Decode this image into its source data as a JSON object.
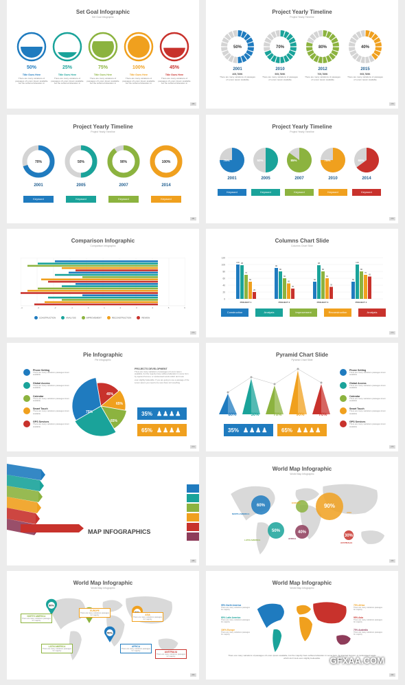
{
  "s1": {
    "title": "Set Goal Infographic",
    "sub": "Set Goal Infographic",
    "items": [
      {
        "pct": "50%",
        "fill": 0.5,
        "color": "#1f7bbf",
        "head": "Title Goes Here",
        "desc": "There are many variations of passages of Lorem Ipsum available but the sufferred alteration in"
      },
      {
        "pct": "25%",
        "fill": 0.25,
        "color": "#1aa39a",
        "head": "Title Goes Here",
        "desc": "There are many variations of passages of Lorem Ipsum available but the sufferred alteration in"
      },
      {
        "pct": "75%",
        "fill": 0.75,
        "color": "#8cb33f",
        "head": "Title Goes Here",
        "desc": "There are many variations of passages of Lorem Ipsum available but the sufferred alteration in"
      },
      {
        "pct": "100%",
        "fill": 1.0,
        "color": "#f0a01e",
        "head": "Title Goes Here",
        "desc": "There are many variations of passages of Lorem Ipsum available but the sufferred alteration in"
      },
      {
        "pct": "45%",
        "fill": 0.45,
        "color": "#c8322c",
        "head": "Title Goes Here",
        "desc": "There are many variations of passages of Lorem Ipsum available but the sufferred alteration in"
      }
    ]
  },
  "s2": {
    "title": "Project Yearly Timeline",
    "sub": "Project Yearly Timeline",
    "items": [
      {
        "pct": "50%",
        "val": 0.5,
        "color": "#1f7bbf",
        "year": "2001",
        "num": "405,789K",
        "desc": "There are many variations of passages of Lorem Ipsum available"
      },
      {
        "pct": "70%",
        "val": 0.7,
        "color": "#1aa39a",
        "year": "2010",
        "num": "505,789K",
        "desc": "There are many variations of passages of Lorem Ipsum available"
      },
      {
        "pct": "80%",
        "val": 0.8,
        "color": "#8cb33f",
        "year": "2012",
        "num": "705,789K",
        "desc": "There are many variations of passages of Lorem Ipsum available"
      },
      {
        "pct": "40%",
        "val": 0.4,
        "color": "#f0a01e",
        "year": "2015",
        "num": "905,789K",
        "desc": "There are many variations of passages of Lorem Ipsum available"
      }
    ]
  },
  "s3": {
    "title": "Project Yearly Timeline",
    "sub": "Project Yearly Timeline",
    "items": [
      {
        "pct": "70%",
        "val": 0.7,
        "color": "#1f7bbf",
        "year": "2001",
        "kw": "Keyword"
      },
      {
        "pct": "50%",
        "val": 0.5,
        "color": "#1aa39a",
        "year": "2005",
        "kw": "Keyword"
      },
      {
        "pct": "90%",
        "val": 0.9,
        "color": "#8cb33f",
        "year": "2007",
        "kw": "Keyword"
      },
      {
        "pct": "100%",
        "val": 1.0,
        "color": "#f0a01e",
        "year": "2014",
        "kw": "Keyword"
      }
    ]
  },
  "s4": {
    "title": "Project Yearly Timeline",
    "sub": "Project Yearly Timeline",
    "items": [
      {
        "pct": "75%",
        "val": 0.75,
        "color": "#1f7bbf",
        "year": "2001",
        "kw": "Keyword"
      },
      {
        "pct": "50%",
        "val": 0.5,
        "color": "#1aa39a",
        "year": "2005",
        "kw": "Keyword"
      },
      {
        "pct": "85%",
        "val": 0.85,
        "color": "#8cb33f",
        "year": "2007",
        "kw": "Keyword"
      },
      {
        "pct": "75%",
        "val": 0.75,
        "color": "#f0a01e",
        "year": "2010",
        "kw": "Keyword"
      },
      {
        "pct": "65%",
        "val": 0.65,
        "color": "#c8322c",
        "year": "2014",
        "kw": "Keyword"
      }
    ]
  },
  "s5": {
    "title": "Comparison Infographic",
    "sub": "Comparison Infographic",
    "axis": [
      "-4",
      "-3",
      "-2",
      "-1",
      "0",
      "1",
      "2",
      "3",
      "4",
      "5",
      "6"
    ],
    "legend": [
      {
        "label": "CONSTRUCTION",
        "color": "#1f7bbf"
      },
      {
        "label": "ANALYSIS",
        "color": "#1aa39a"
      },
      {
        "label": "IMPROVEMENT",
        "color": "#8cb33f"
      },
      {
        "label": "RECONSTRUCTION",
        "color": "#f0a01e"
      },
      {
        "label": "REVIEW",
        "color": "#c8322c"
      }
    ]
  },
  "s6": {
    "title": "Columns Chart Slide",
    "sub": "Columns Chart Slide",
    "yticks": [
      "120",
      "100",
      "80",
      "60",
      "40",
      "20",
      "0"
    ],
    "groups": [
      {
        "label": "PROJECT 1",
        "vals": [
          100,
          98,
          70,
          50,
          20
        ]
      },
      {
        "label": "PROJECT 2",
        "vals": [
          90,
          80,
          60,
          45,
          30
        ]
      },
      {
        "label": "PROJECT 3",
        "vals": [
          50,
          98,
          80,
          60,
          35
        ]
      },
      {
        "label": "PROJECT 4",
        "vals": [
          50,
          100,
          80,
          70,
          65
        ]
      }
    ],
    "colors": [
      "#1f7bbf",
      "#1aa39a",
      "#8cb33f",
      "#f0a01e",
      "#c8322c"
    ],
    "buttons": [
      "Construction",
      "Analysis",
      "Improvement",
      "Reconstruction",
      "Analysis"
    ]
  },
  "s7": {
    "title": "Pie Infographic",
    "sub": "Pie Infographic",
    "list": [
      {
        "t": "Phone Setting",
        "d": "There are many variations passages lorem available",
        "color": "#1f7bbf"
      },
      {
        "t": "Global Access",
        "d": "There are many variations passages lorem available",
        "color": "#1aa39a"
      },
      {
        "t": "Calendar",
        "d": "There are many variations passages lorem available",
        "color": "#8cb33f"
      },
      {
        "t": "Smart Touch",
        "d": "There are many variations passages lorem available",
        "color": "#f0a01e"
      },
      {
        "t": "GPS Services",
        "d": "There are many variations passages lorem available",
        "color": "#c8322c"
      }
    ],
    "slices": [
      "35%",
      "45%",
      "65%",
      "75%",
      "65%"
    ],
    "proj_title": "PROJECTS DEVELOPMENT",
    "proj_text": "There are many variations of passages of Lorem Ipsum available, but the majority have suffered alteration in some form by injected humour, or randomised words which don't look",
    "proj_text2": "even slightly believable. If you are going to use a passage of the Lorem Ipsum you need to be sure there isn't anything",
    "stat1": "35%",
    "stat2": "65%"
  },
  "s8": {
    "title": "Pyramid Chart Slide",
    "sub": "Pyramid Chart Slide",
    "pcts": [
      "80%",
      "30%",
      "70%",
      "90%",
      "70%"
    ],
    "colors": [
      "#1f7bbf",
      "#1aa39a",
      "#8cb33f",
      "#f0a01e",
      "#c8322c"
    ],
    "list": [
      {
        "t": "Phone Setting",
        "d": "There are many variations passages lorem available",
        "color": "#1f7bbf"
      },
      {
        "t": "Global Access",
        "d": "There are many variations passages lorem available",
        "color": "#1aa39a"
      },
      {
        "t": "Calendar",
        "d": "There are many variations passages lorem available",
        "color": "#8cb33f"
      },
      {
        "t": "Smart Touch",
        "d": "There are many variations passages lorem available",
        "color": "#f0a01e"
      },
      {
        "t": "GPS Services",
        "d": "There are many variations passages lorem available",
        "color": "#c8322c"
      }
    ],
    "stat1": "35%",
    "stat2": "65%"
  },
  "s9": {
    "title": "MAP INFOGRAPHICS"
  },
  "s10": {
    "title": "World Map Infographic",
    "sub": "World Map Infographic",
    "bubbles": [
      {
        "pct": "60%",
        "color": "#1f7bbf"
      },
      {
        "pct": "90%",
        "color": "#f0a01e"
      },
      {
        "pct": "50%",
        "color": "#1aa39a"
      },
      {
        "pct": "40%",
        "color": "#8e3c5a"
      },
      {
        "pct": "30%",
        "color": "#c8322c"
      },
      {
        "pct": "",
        "color": "#8cb33f"
      }
    ],
    "labels": [
      "NORTH AMERICA",
      "EUROPE",
      "ASIA",
      "LATIN AMERICA",
      "AFRICA",
      "AUSTRALIA"
    ]
  },
  "s11": {
    "title": "World Map Infographic",
    "sub": "World Map Infographic",
    "pins": [
      "90%",
      "90%",
      "80%",
      "50%"
    ],
    "boxes": [
      {
        "h": "NORTH AMERICA",
        "color": "#8cb33f"
      },
      {
        "h": "EUROPE",
        "color": "#f0a01e"
      },
      {
        "h": "ASIA",
        "color": "#f0a01e"
      },
      {
        "h": "LATIN AMERICA",
        "color": "#8cb33f"
      },
      {
        "h": "AFRICA",
        "color": "#1f7bbf"
      },
      {
        "h": "AUSTRALIA",
        "color": "#c8322c"
      }
    ],
    "box_desc": "There are many variations passages for majority"
  },
  "s12": {
    "title": "World Map Infographic",
    "sub": "World Map Infographic",
    "left": [
      {
        "h": "95% North America",
        "d": "There are many variations passages for majority",
        "color": "#1f7bbf"
      },
      {
        "h": "80% Latin America",
        "d": "There are many variations passages for majority",
        "color": "#1aa39a"
      },
      {
        "h": "100% Europe",
        "d": "There are many variations passages for majority",
        "color": "#f0a01e"
      }
    ],
    "right": [
      {
        "h": "70% Africa",
        "d": "There are many variations passages for majority",
        "color": "#f0a01e"
      },
      {
        "h": "90% Asia",
        "d": "There are many variations passages for majority",
        "color": "#c8322c"
      },
      {
        "h": "70% Australia",
        "d": "There are many variations passages for majority",
        "color": "#8e3c5a"
      }
    ],
    "footer": "There are many variations of passages of Lorem Ipsum available, but the majority have suffered alteration in some form, by injected humour, or randomised words which don't look even slightly believable.",
    "watermark": "GFXAA.COM"
  }
}
